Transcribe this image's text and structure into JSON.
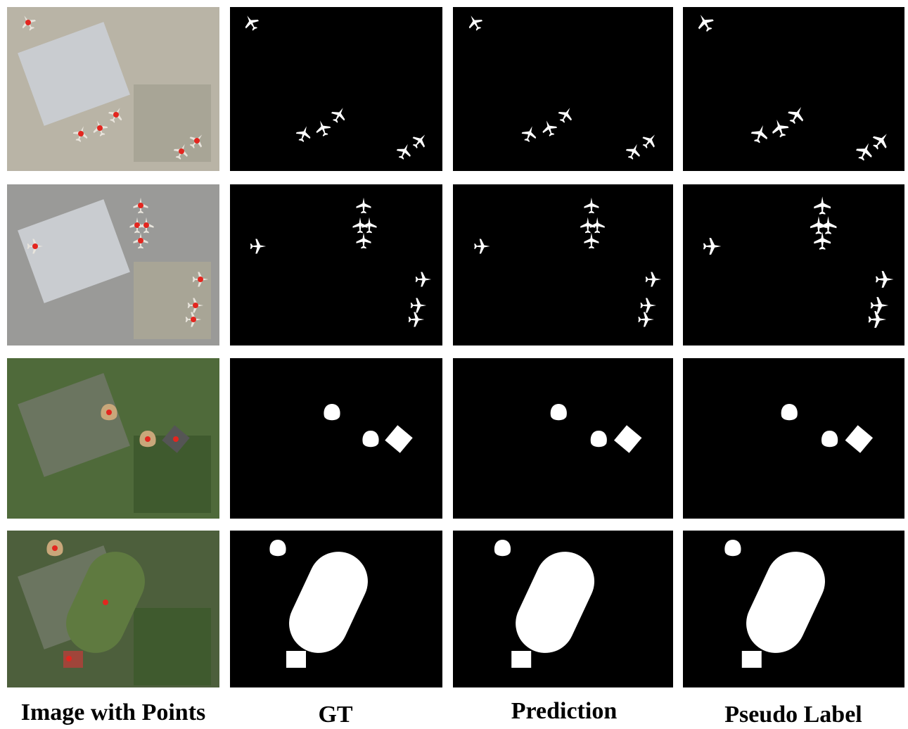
{
  "columns": [
    "Image with Points",
    "GT",
    "Prediction",
    "Pseudo Label"
  ]
}
